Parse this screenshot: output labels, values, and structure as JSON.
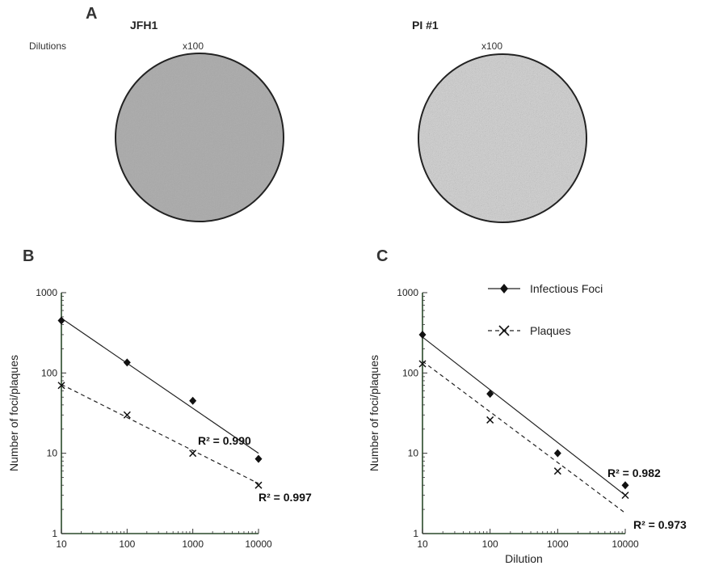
{
  "panel_a": {
    "letter": "A",
    "dilutions_label": "Dilutions",
    "wells": [
      {
        "title": "JFH1",
        "dilution": "x100",
        "fill": "#aaaaaa",
        "texture": "smooth"
      },
      {
        "title": "PI #1",
        "dilution": "x100",
        "fill": "#c8c8c8",
        "texture": "speckled"
      }
    ]
  },
  "chart_data": [
    {
      "panel": "B",
      "type": "scatter",
      "scale": "log-log",
      "ylabel": "Number of foci/plaques",
      "xlabel": "",
      "xlim": [
        10,
        10000
      ],
      "ylim": [
        1,
        1000
      ],
      "x_ticks": [
        "10",
        "100",
        "1000",
        "10000"
      ],
      "y_ticks": [
        "1",
        "10",
        "100",
        "1000"
      ],
      "legend": null,
      "series": [
        {
          "marker": "diamond",
          "line": "solid",
          "x": [
            10,
            100,
            1000,
            10000
          ],
          "y": [
            450,
            135,
            45,
            8.5
          ],
          "fit_y": [
            480,
            10
          ],
          "r2_label": "R² = 0.990"
        },
        {
          "marker": "x",
          "line": "dashed",
          "x": [
            10,
            100,
            1000,
            10000
          ],
          "y": [
            70,
            30,
            10,
            4
          ],
          "fit_y": [
            72,
            4.2
          ],
          "r2_label": "R² = 0.997"
        }
      ]
    },
    {
      "panel": "C",
      "type": "scatter",
      "scale": "log-log",
      "ylabel": "Number of foci/plaques",
      "xlabel": "Dilution",
      "xlim": [
        10,
        10000
      ],
      "ylim": [
        1,
        1000
      ],
      "x_ticks": [
        "10",
        "100",
        "1000",
        "10000"
      ],
      "y_ticks": [
        "1",
        "10",
        "100",
        "1000"
      ],
      "legend": {
        "position": "top-right"
      },
      "series": [
        {
          "name": "Infectious Foci",
          "marker": "diamond",
          "line": "solid",
          "x": [
            10,
            100,
            1000,
            10000
          ],
          "y": [
            300,
            55,
            10,
            4
          ],
          "fit_y": [
            280,
            3
          ],
          "r2_label": "R² = 0.982"
        },
        {
          "name": "Plaques",
          "marker": "x",
          "line": "dashed",
          "x": [
            10,
            100,
            1000,
            10000
          ],
          "y": [
            130,
            26,
            6,
            3
          ],
          "fit_y": [
            140,
            1.8
          ],
          "r2_label": "R² = 0.973"
        }
      ]
    }
  ]
}
